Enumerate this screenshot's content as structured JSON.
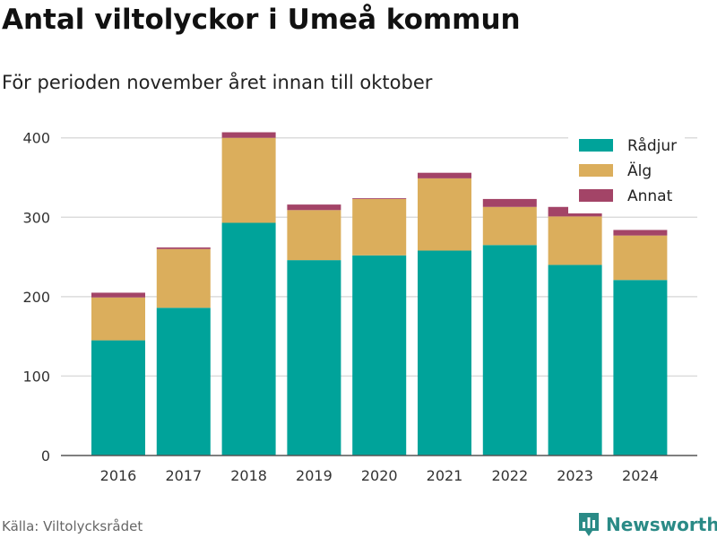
{
  "header": {
    "title": "Antal viltolyckor i Umeå kommun",
    "subtitle": "För perioden november året innan till oktober"
  },
  "footer": {
    "source": "Källa: Viltolycksrådet",
    "brand": "Newsworthy",
    "brand_icon": "bar-chart-flag-icon"
  },
  "chart_data": {
    "type": "bar",
    "stacked": true,
    "categories": [
      "2016",
      "2017",
      "2018",
      "2019",
      "2020",
      "2021",
      "2022",
      "2023",
      "2024"
    ],
    "series": [
      {
        "name": "Rådjur",
        "color": "#00a39a",
        "values": [
          145,
          186,
          293,
          246,
          252,
          258,
          265,
          240,
          221
        ]
      },
      {
        "name": "Älg",
        "color": "#dbae5c",
        "values": [
          54,
          74,
          107,
          63,
          71,
          91,
          48,
          61,
          56
        ]
      },
      {
        "name": "Annat",
        "color": "#a34467",
        "values": [
          6,
          2,
          7,
          7,
          1,
          7,
          10,
          12,
          7
        ]
      }
    ],
    "yticks": [
      0,
      100,
      200,
      300,
      400
    ],
    "ylim": [
      0,
      420
    ],
    "grid": true,
    "legend": "top-right",
    "title": "Antal viltolyckor i Umeå kommun",
    "subtitle": "För perioden november året innan till oktober",
    "xlabel": "",
    "ylabel": ""
  }
}
